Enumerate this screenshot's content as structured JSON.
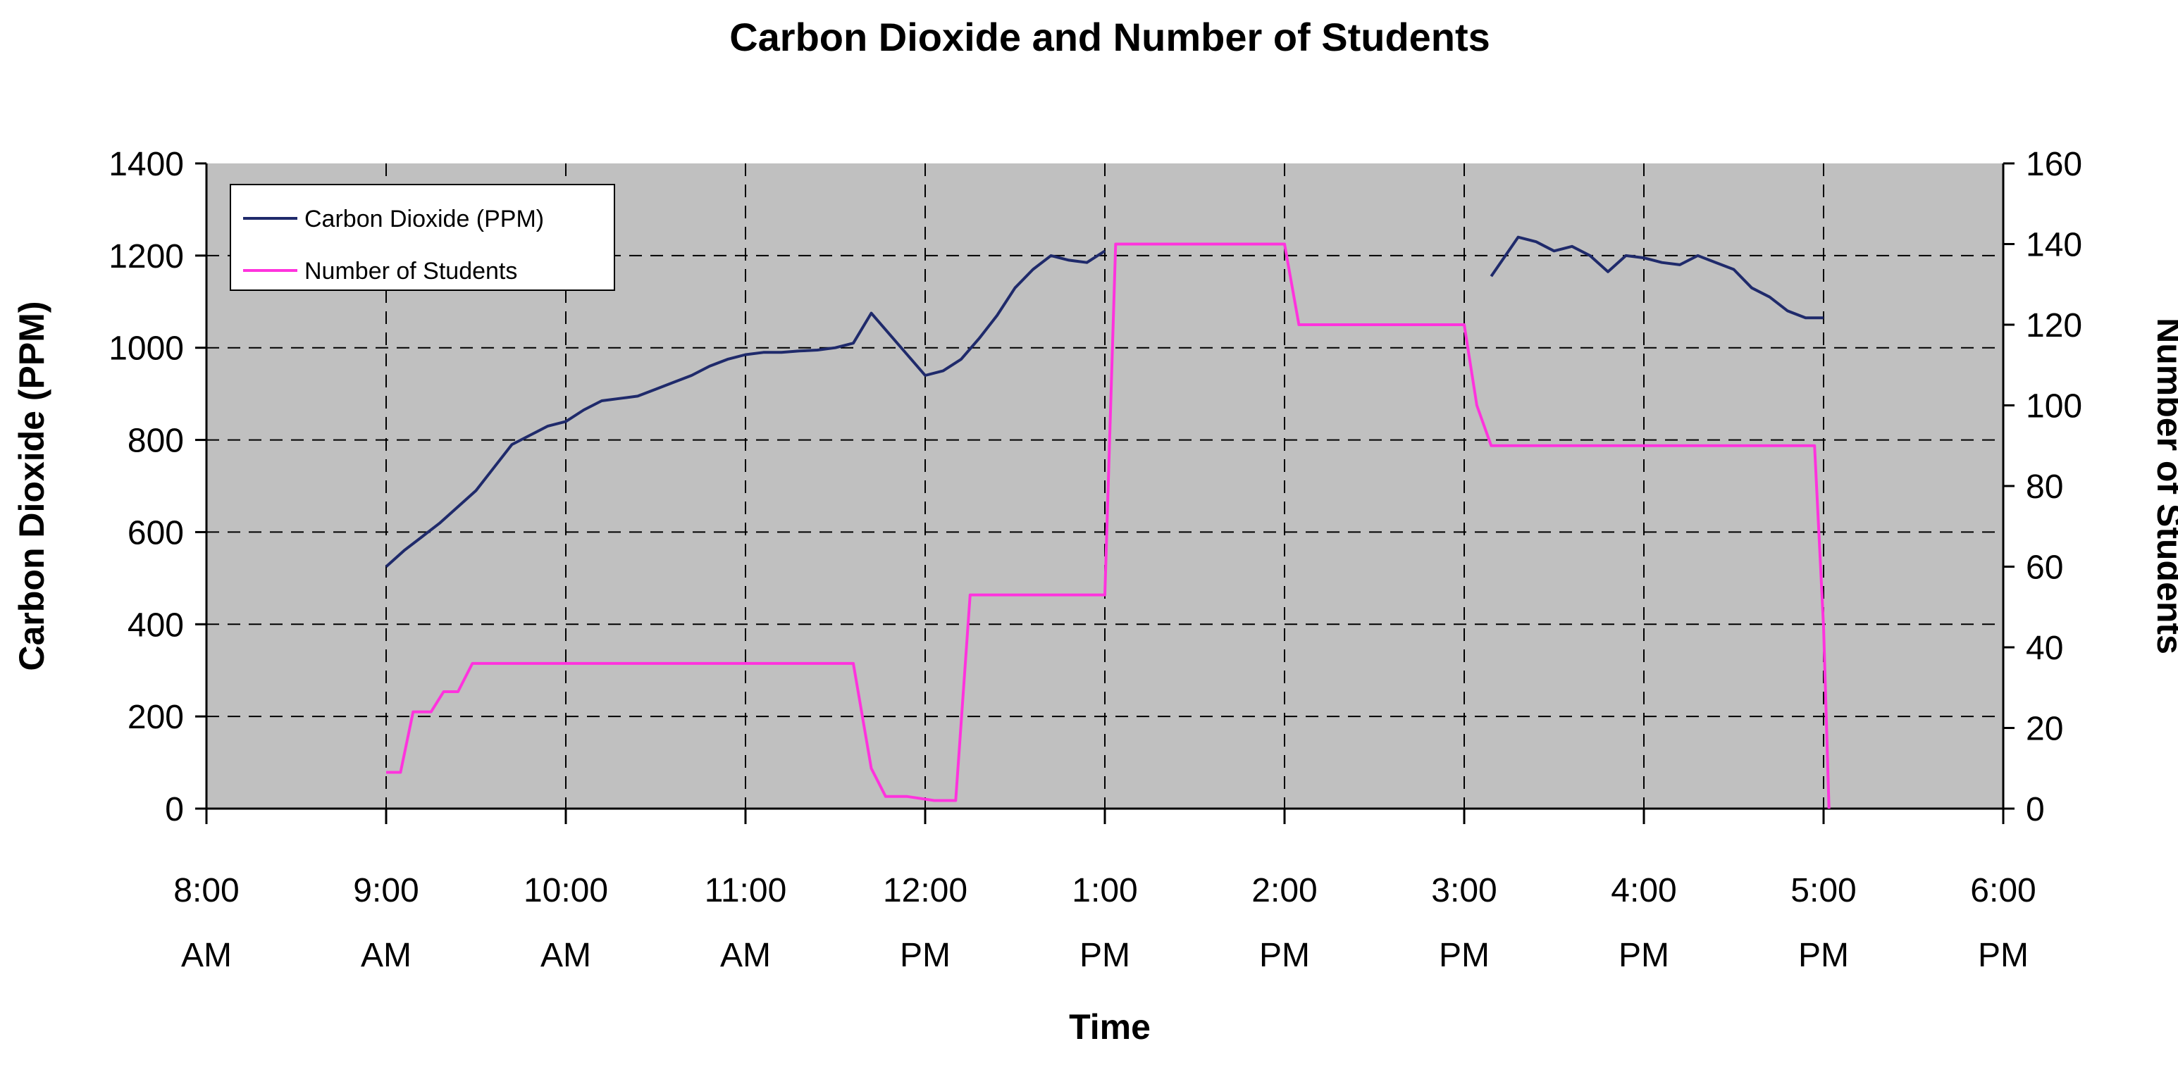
{
  "chart_data": {
    "type": "line",
    "title": "Carbon Dioxide and Number of Students",
    "xlabel": "Time",
    "ylabel_left": "Carbon Dioxide (PPM)",
    "ylabel_right": "Number of Students",
    "x_ticks": [
      {
        "hour": 8,
        "line1": "8:00",
        "line2": "AM"
      },
      {
        "hour": 9,
        "line1": "9:00",
        "line2": "AM"
      },
      {
        "hour": 10,
        "line1": "10:00",
        "line2": "AM"
      },
      {
        "hour": 11,
        "line1": "11:00",
        "line2": "AM"
      },
      {
        "hour": 12,
        "line1": "12:00",
        "line2": "PM"
      },
      {
        "hour": 13,
        "line1": "1:00",
        "line2": "PM"
      },
      {
        "hour": 14,
        "line1": "2:00",
        "line2": "PM"
      },
      {
        "hour": 15,
        "line1": "3:00",
        "line2": "PM"
      },
      {
        "hour": 16,
        "line1": "4:00",
        "line2": "PM"
      },
      {
        "hour": 17,
        "line1": "5:00",
        "line2": "PM"
      },
      {
        "hour": 18,
        "line1": "6:00",
        "line2": "PM"
      }
    ],
    "xlim_hours": [
      8,
      18
    ],
    "ylim_left": [
      0,
      1400
    ],
    "yticks_left": [
      0,
      200,
      400,
      600,
      800,
      1000,
      1200,
      1400
    ],
    "ylim_right": [
      0,
      160
    ],
    "yticks_right": [
      0,
      20,
      40,
      60,
      80,
      100,
      120,
      140,
      160
    ],
    "grid": true,
    "legend_position": "top-left",
    "plot_background": "#c0c0c0",
    "series": [
      {
        "name": "Carbon Dioxide (PPM)",
        "axis": "left",
        "color": "#1f2a6b",
        "segments": [
          [
            [
              9.0,
              525
            ],
            [
              9.1,
              560
            ],
            [
              9.2,
              590
            ],
            [
              9.3,
              620
            ],
            [
              9.4,
              655
            ],
            [
              9.5,
              690
            ],
            [
              9.6,
              740
            ],
            [
              9.7,
              790
            ],
            [
              9.8,
              810
            ],
            [
              9.9,
              830
            ],
            [
              10.0,
              840
            ],
            [
              10.1,
              865
            ],
            [
              10.2,
              885
            ],
            [
              10.3,
              890
            ],
            [
              10.4,
              895
            ],
            [
              10.5,
              910
            ],
            [
              10.6,
              925
            ],
            [
              10.7,
              940
            ],
            [
              10.8,
              960
            ],
            [
              10.9,
              975
            ],
            [
              11.0,
              985
            ],
            [
              11.1,
              990
            ],
            [
              11.2,
              990
            ],
            [
              11.3,
              993
            ],
            [
              11.4,
              995
            ],
            [
              11.5,
              1000
            ],
            [
              11.6,
              1010
            ],
            [
              11.7,
              1075
            ],
            [
              11.8,
              1030
            ],
            [
              11.9,
              985
            ],
            [
              12.0,
              940
            ],
            [
              12.1,
              950
            ],
            [
              12.2,
              975
            ],
            [
              12.3,
              1020
            ],
            [
              12.4,
              1070
            ],
            [
              12.5,
              1130
            ],
            [
              12.6,
              1170
            ],
            [
              12.7,
              1200
            ],
            [
              12.8,
              1190
            ],
            [
              12.9,
              1185
            ],
            [
              13.0,
              1210
            ]
          ],
          [
            [
              15.15,
              1155
            ],
            [
              15.3,
              1240
            ],
            [
              15.4,
              1230
            ],
            [
              15.5,
              1210
            ],
            [
              15.6,
              1220
            ],
            [
              15.7,
              1200
            ],
            [
              15.8,
              1165
            ],
            [
              15.9,
              1200
            ],
            [
              16.0,
              1195
            ],
            [
              16.1,
              1185
            ],
            [
              16.2,
              1180
            ],
            [
              16.3,
              1200
            ],
            [
              16.4,
              1185
            ],
            [
              16.5,
              1170
            ],
            [
              16.6,
              1130
            ],
            [
              16.7,
              1110
            ],
            [
              16.8,
              1080
            ],
            [
              16.9,
              1065
            ],
            [
              17.0,
              1065
            ]
          ]
        ]
      },
      {
        "name": "Number of Students",
        "axis": "right",
        "color": "#ff33dd",
        "segments": [
          [
            [
              9.0,
              9
            ],
            [
              9.08,
              9
            ],
            [
              9.15,
              24
            ],
            [
              9.25,
              24
            ],
            [
              9.32,
              29
            ],
            [
              9.4,
              29
            ],
            [
              9.48,
              36
            ],
            [
              11.6,
              36
            ],
            [
              11.7,
              10
            ],
            [
              11.78,
              3
            ],
            [
              11.9,
              3
            ],
            [
              12.05,
              2
            ],
            [
              12.17,
              2
            ],
            [
              12.25,
              53
            ],
            [
              13.0,
              53
            ],
            [
              13.06,
              140
            ],
            [
              14.0,
              140
            ],
            [
              14.08,
              120
            ],
            [
              15.0,
              120
            ],
            [
              15.07,
              100
            ],
            [
              15.15,
              90
            ],
            [
              16.95,
              90
            ],
            [
              17.0,
              45
            ],
            [
              17.03,
              0
            ]
          ]
        ]
      }
    ]
  }
}
